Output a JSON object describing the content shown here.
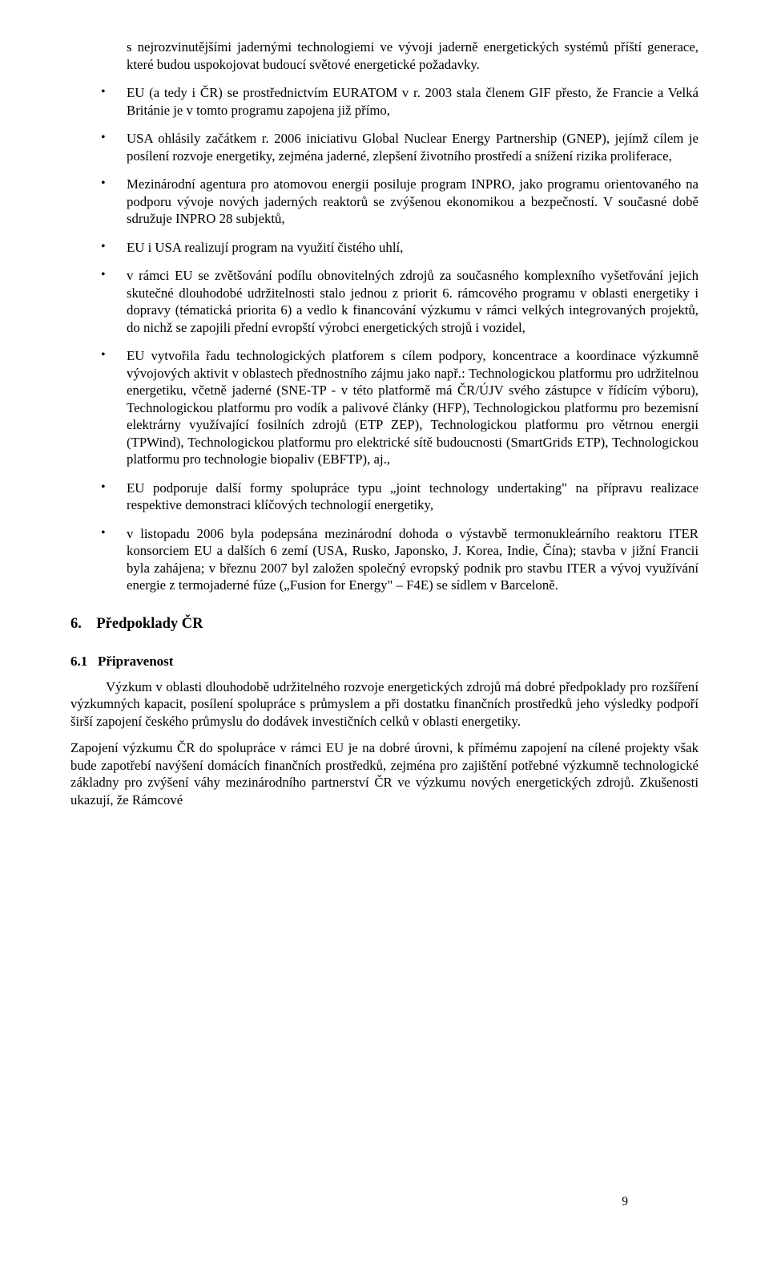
{
  "intro": "s nejrozvinutějšími jadernými technologiemi ve vývoji jaderně energetických systémů příští generace, které budou uspokojovat budoucí světové energetické požadavky.",
  "bullets": [
    "EU (a tedy i ČR) se prostřednictvím EURATOM v r. 2003  stala členem GIF přesto, že Francie a Velká Británie je v tomto programu zapojena již přímo,",
    "USA ohlásily začátkem  r. 2006 iniciativu Global Nuclear Energy Partnership (GNEP), jejímž cílem je posílení rozvoje energetiky, zejména jaderné, zlepšení životního prostředí a snížení rizika proliferace,",
    "Mezinárodní agentura pro atomovou energii posiluje program INPRO, jako programu orientovaného na podporu vývoje nových jaderných reaktorů se zvýšenou ekonomikou a bezpečností. V současné době sdružuje INPRO 28 subjektů,",
    " EU i USA realizují program na využití čistého uhlí,",
    "v rámci EU se zvětšování podílu obnovitelných zdrojů za současného komplexního vyšetřování jejich skutečné dlouhodobé udržitelnosti stalo jednou z priorit 6. rámcového programu v oblasti energetiky i dopravy (tématická priorita 6) a vedlo k financování výzkumu v rámci velkých integrovaných projektů, do nichž se zapojili přední evropští výrobci energetických strojů i vozidel,",
    "EU vytvořila řadu technologických platforem s cílem podpory, koncentrace a koordinace výzkumně vývojových aktivit v oblastech přednostního zájmu jako např.: Technologickou platformu  pro udržitelnou energetiku, včetně jaderné (SNE-TP - v této platformě má ČR/ÚJV svého zástupce v řídícím výboru), Technologickou platformu pro vodík a palivové články (HFP), Technologickou platformu pro bezemisní elektrárny využívající fosilních zdrojů (ETP ZEP), Technologickou platformu pro větrnou energii (TPWind), Technologickou platformu pro elektrické sítě budoucnosti (SmartGrids ETP), Technologickou platformu pro technologie biopaliv (EBFTP),  aj.,",
    "EU podporuje další formy spolupráce typu „joint technology undertaking\" na přípravu realizace respektive demonstraci klíčových technologií energetiky,",
    "v listopadu 2006 byla podepsána mezinárodní dohoda o výstavbě termonukleárního reaktoru ITER konsorciem EU a dalších 6 zemí (USA, Rusko, Japonsko, J. Korea, Indie, Čína); stavba v jižní Francii byla zahájena; v březnu 2007 byl založen společný evropský podnik pro stavbu ITER a vývoj využívání energie z termojaderné fúze („Fusion for Energy\" – F4E) se sídlem v Barceloně."
  ],
  "section": {
    "number": "6.",
    "title": "Předpoklady ČR"
  },
  "subsection": {
    "number": "6.1",
    "title": "Připravenost"
  },
  "para1": "Výzkum v oblasti dlouhodobě udržitelného rozvoje energetických zdrojů má dobré předpoklady pro rozšíření výzkumných kapacit, posílení spolupráce s průmyslem a při dostatku finančních prostředků jeho výsledky podpoří  širší zapojení českého průmyslu do dodávek investičních celků v oblasti energetiky.",
  "para2": "Zapojení výzkumu ČR do spolupráce v rámci EU je na dobré úrovni, k přímému zapojení na cílené projekty však bude zapotřebí navýšení domácích finančních prostředků, zejména pro zajištění potřebné výzkumně technologické základny pro zvýšení váhy mezinárodního partnerství ČR ve výzkumu nových energetických zdrojů.  Zkušenosti ukazují, že Rámcové",
  "pageNumber": "9"
}
